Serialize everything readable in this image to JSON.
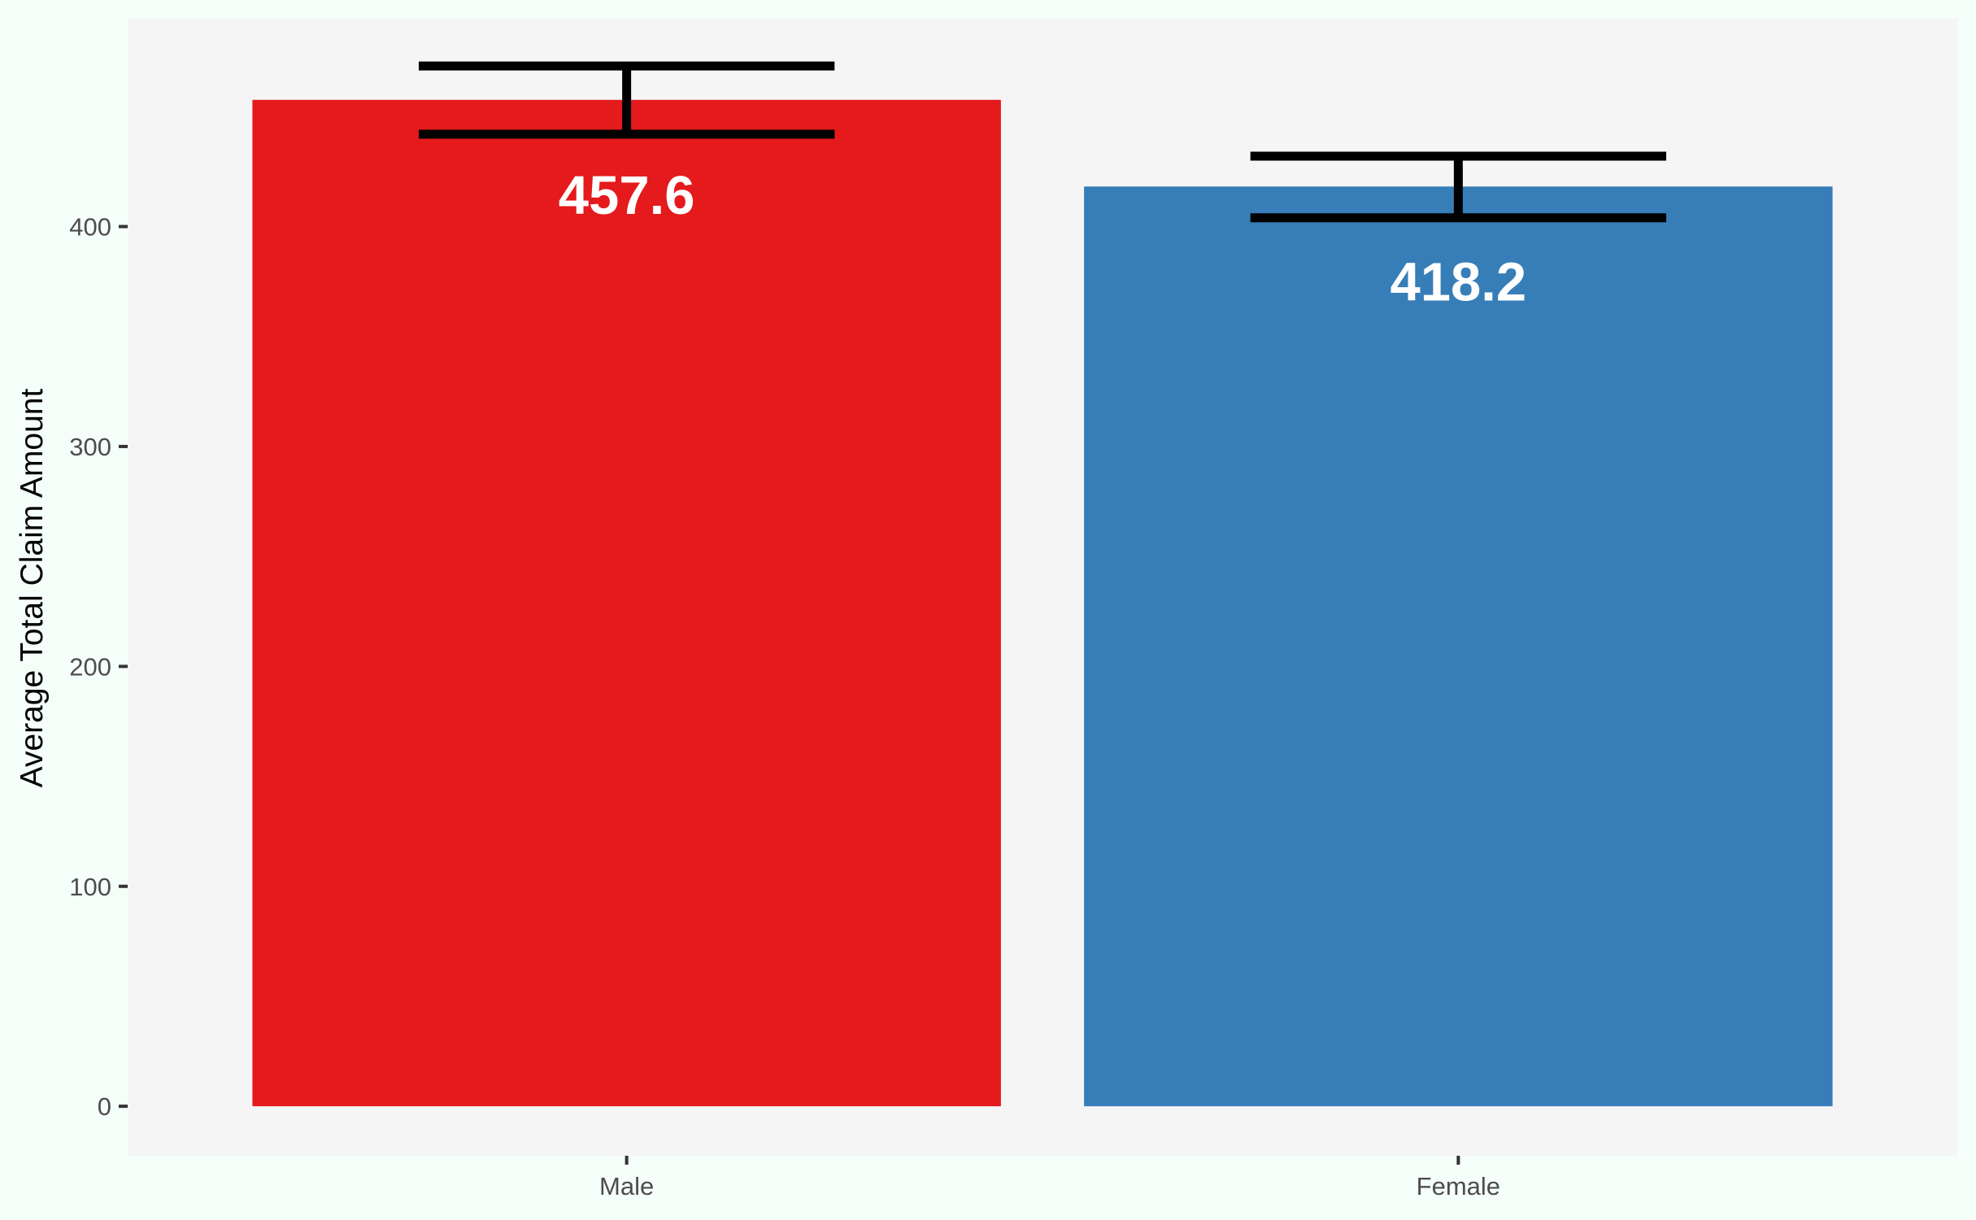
{
  "chart_data": {
    "type": "bar",
    "categories": [
      "Male",
      "Female"
    ],
    "values": [
      457.6,
      418.2
    ],
    "value_labels": [
      "457.6",
      "418.2"
    ],
    "error_bars": [
      {
        "low": 442,
        "high": 473
      },
      {
        "low": 404,
        "high": 432
      }
    ],
    "colors": [
      "#e41a1c",
      "#377eb8"
    ],
    "title": "",
    "xlabel": "",
    "ylabel": "Average Total Claim Amount",
    "ylim": [
      -22.5,
      494.5
    ],
    "yticks": [
      0,
      100,
      200,
      300,
      400
    ],
    "ytick_labels": [
      "0",
      "100",
      "200",
      "300",
      "400"
    ],
    "grid": false,
    "panel_background": "#f5f5f5",
    "page_background": "#f5fffa",
    "error_bar_color": "#000000",
    "data_label_color": "#ffffff"
  }
}
